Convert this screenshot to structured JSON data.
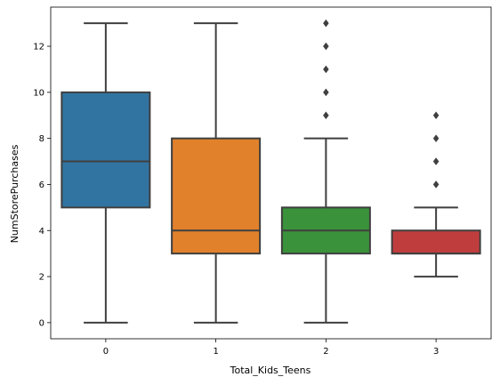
{
  "chart_data": {
    "type": "box",
    "xlabel": "Total_Kids_Teens",
    "ylabel": "NumStorePurchases",
    "categories": [
      "0",
      "1",
      "2",
      "3"
    ],
    "ylim": [
      -0.7,
      13.7
    ],
    "yticks": [
      "0",
      "2",
      "4",
      "6",
      "8",
      "10",
      "12"
    ],
    "grid": false,
    "boxes": [
      {
        "category": "0",
        "whisker_low": 0,
        "q1": 5,
        "median": 7,
        "q3": 10,
        "whisker_high": 13,
        "outliers": [],
        "color": "#3274a1"
      },
      {
        "category": "1",
        "whisker_low": 0,
        "q1": 3,
        "median": 4,
        "q3": 8,
        "whisker_high": 13,
        "outliers": [],
        "color": "#e1812c"
      },
      {
        "category": "2",
        "whisker_low": 0,
        "q1": 3,
        "median": 4,
        "q3": 5,
        "whisker_high": 8,
        "outliers": [
          9,
          10,
          11,
          12,
          13
        ],
        "color": "#3a923a"
      },
      {
        "category": "3",
        "whisker_low": 2,
        "q1": 3,
        "median": 3,
        "q3": 4,
        "whisker_high": 5,
        "outliers": [
          6,
          7,
          8,
          9
        ],
        "color": "#c03d3e"
      }
    ],
    "line_color": "#3f3f3f"
  }
}
